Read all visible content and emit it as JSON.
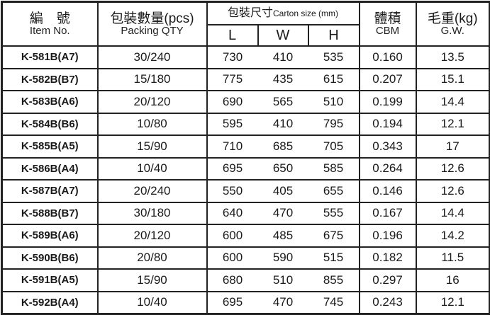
{
  "header": {
    "item_zh": "編　號",
    "item_en": "Item No.",
    "packing_zh": "包裝數量(pcs)",
    "packing_en": "Packing QTY",
    "carton_zh": "包裝尺寸",
    "carton_en": "Carton size (mm)",
    "dim_l": "L",
    "dim_w": "W",
    "dim_h": "H",
    "cbm_zh": "體積",
    "cbm_en": "CBM",
    "gw_zh": "毛重(kg)",
    "gw_en": "G.W."
  },
  "rows": [
    {
      "item": "K-581B(A7)",
      "qty": "30/240",
      "l": "730",
      "w": "410",
      "h": "535",
      "cbm": "0.160",
      "gw": "13.5"
    },
    {
      "item": "K-582B(B7)",
      "qty": "15/180",
      "l": "775",
      "w": "435",
      "h": "615",
      "cbm": "0.207",
      "gw": "15.1"
    },
    {
      "item": "K-583B(A6)",
      "qty": "20/120",
      "l": "690",
      "w": "565",
      "h": "510",
      "cbm": "0.199",
      "gw": "14.4"
    },
    {
      "item": "K-584B(B6)",
      "qty": "10/80",
      "l": "595",
      "w": "410",
      "h": "795",
      "cbm": "0.194",
      "gw": "12.1"
    },
    {
      "item": "K-585B(A5)",
      "qty": "15/90",
      "l": "710",
      "w": "685",
      "h": "705",
      "cbm": "0.343",
      "gw": "17"
    },
    {
      "item": "K-586B(A4)",
      "qty": "10/40",
      "l": "695",
      "w": "650",
      "h": "585",
      "cbm": "0.264",
      "gw": "12.6"
    },
    {
      "item": "K-587B(A7)",
      "qty": "20/240",
      "l": "550",
      "w": "405",
      "h": "655",
      "cbm": "0.146",
      "gw": "12.6"
    },
    {
      "item": "K-588B(B7)",
      "qty": "30/180",
      "l": "640",
      "w": "470",
      "h": "555",
      "cbm": "0.167",
      "gw": "14.4"
    },
    {
      "item": "K-589B(A6)",
      "qty": "20/120",
      "l": "600",
      "w": "485",
      "h": "675",
      "cbm": "0.196",
      "gw": "14.2"
    },
    {
      "item": "K-590B(B6)",
      "qty": "20/80",
      "l": "600",
      "w": "590",
      "h": "515",
      "cbm": "0.182",
      "gw": "11.5"
    },
    {
      "item": "K-591B(A5)",
      "qty": "15/90",
      "l": "680",
      "w": "510",
      "h": "855",
      "cbm": "0.297",
      "gw": "16"
    },
    {
      "item": "K-592B(A4)",
      "qty": "10/40",
      "l": "695",
      "w": "470",
      "h": "745",
      "cbm": "0.243",
      "gw": "12.1"
    }
  ]
}
